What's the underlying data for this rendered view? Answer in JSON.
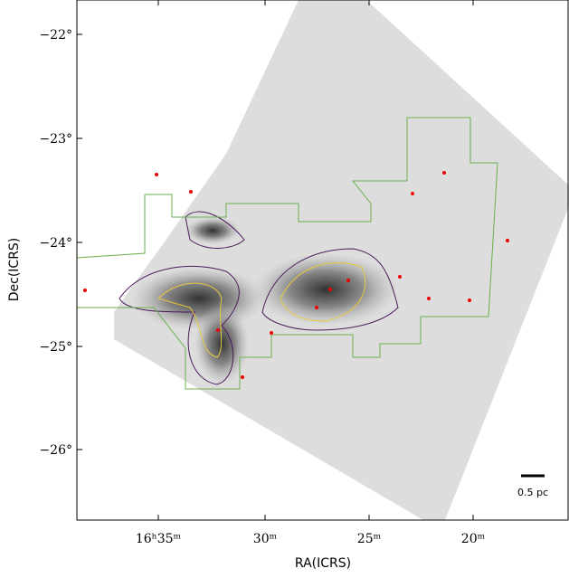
{
  "x_axis": {
    "label": "RA(ICRS)",
    "ticks": [
      "16ʰ35ᵐ",
      "30ᵐ",
      "25ᵐ",
      "20ᵐ"
    ]
  },
  "y_axis": {
    "label": "Dec(ICRS)",
    "ticks": [
      "−22°",
      "−23°",
      "−24°",
      "−25°",
      "−26°"
    ]
  },
  "scale_bar": "0.5 pc"
}
